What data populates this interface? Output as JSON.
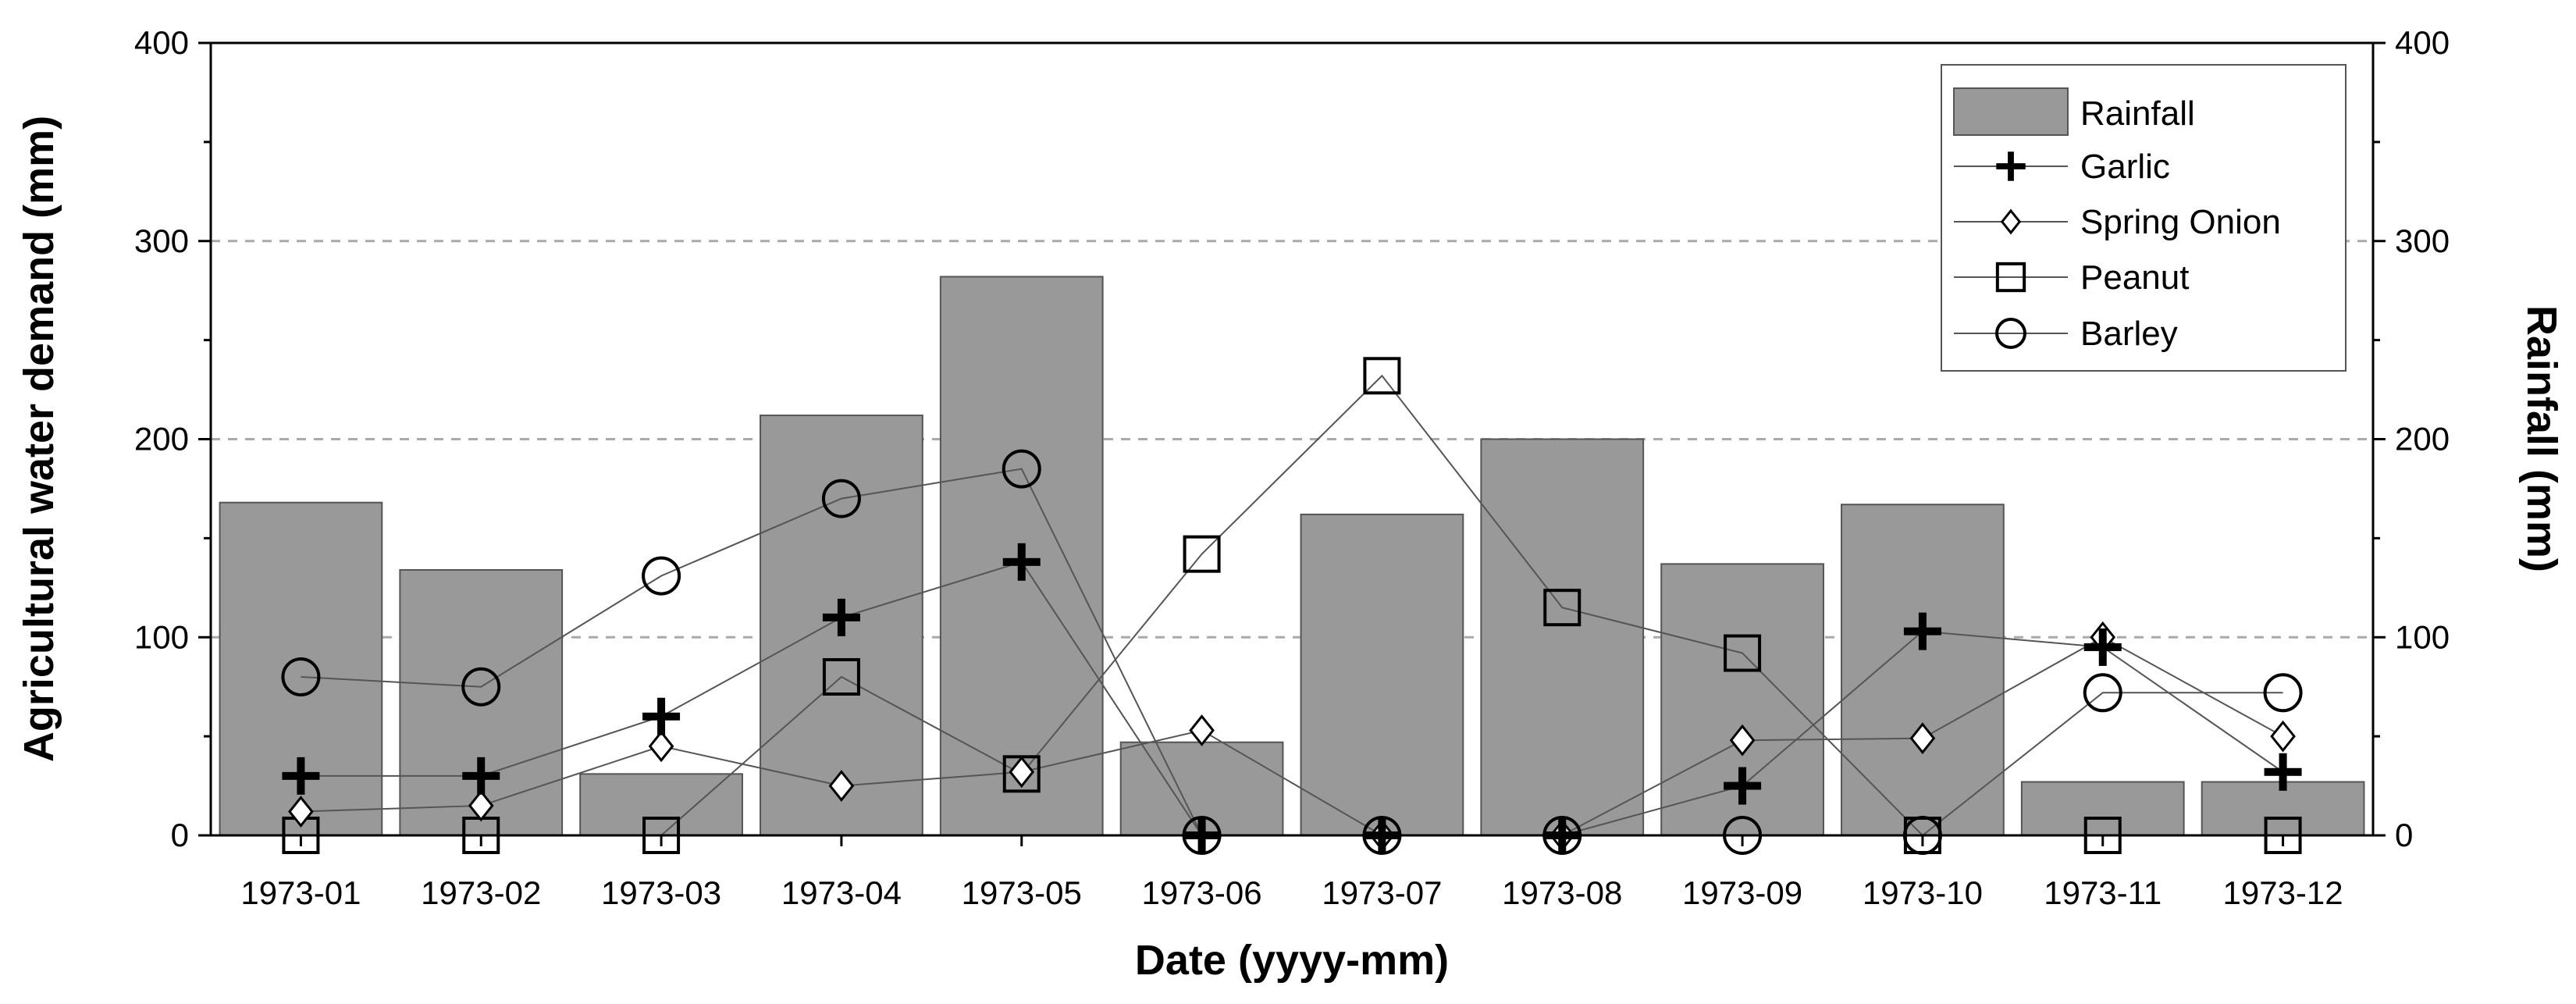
{
  "chart_data": {
    "type": "bar+line",
    "categories": [
      "1973-01",
      "1973-02",
      "1973-03",
      "1973-04",
      "1973-05",
      "1973-06",
      "1973-07",
      "1973-08",
      "1973-09",
      "1973-10",
      "1973-11",
      "1973-12"
    ],
    "xlabel": "Date (yyyy-mm)",
    "ylabel_left": "Agricultural water demand (mm)",
    "ylabel_right": "Rainfall (mm)",
    "ylim": [
      0,
      400
    ],
    "yticks": [
      0,
      100,
      200,
      300,
      400
    ],
    "grid_y": [
      100,
      200,
      300
    ],
    "legend_position": "top-right",
    "bars": {
      "name": "Rainfall",
      "values": [
        168,
        134,
        31,
        212,
        282,
        47,
        162,
        200,
        137,
        167,
        27,
        27
      ]
    },
    "series": [
      {
        "name": "Garlic",
        "marker": "plus",
        "values": [
          30,
          30,
          60,
          110,
          138,
          0,
          0,
          0,
          25,
          103,
          95,
          32
        ]
      },
      {
        "name": "Spring Onion",
        "marker": "diamond",
        "values": [
          12,
          15,
          45,
          25,
          32,
          53,
          0,
          0,
          48,
          49,
          100,
          50
        ]
      },
      {
        "name": "Peanut",
        "marker": "square",
        "values": [
          0,
          0,
          0,
          80,
          31,
          142,
          232,
          115,
          92,
          0,
          0,
          0
        ]
      },
      {
        "name": "Barley",
        "marker": "circle",
        "values": [
          80,
          75,
          131,
          170,
          185,
          0,
          0,
          0,
          0,
          0,
          72,
          72
        ]
      }
    ],
    "colors": {
      "bar": "#999999",
      "bar_stroke": "#555555",
      "line": "#555555",
      "marker": "#000000",
      "grid": "#aaaaaa"
    }
  }
}
